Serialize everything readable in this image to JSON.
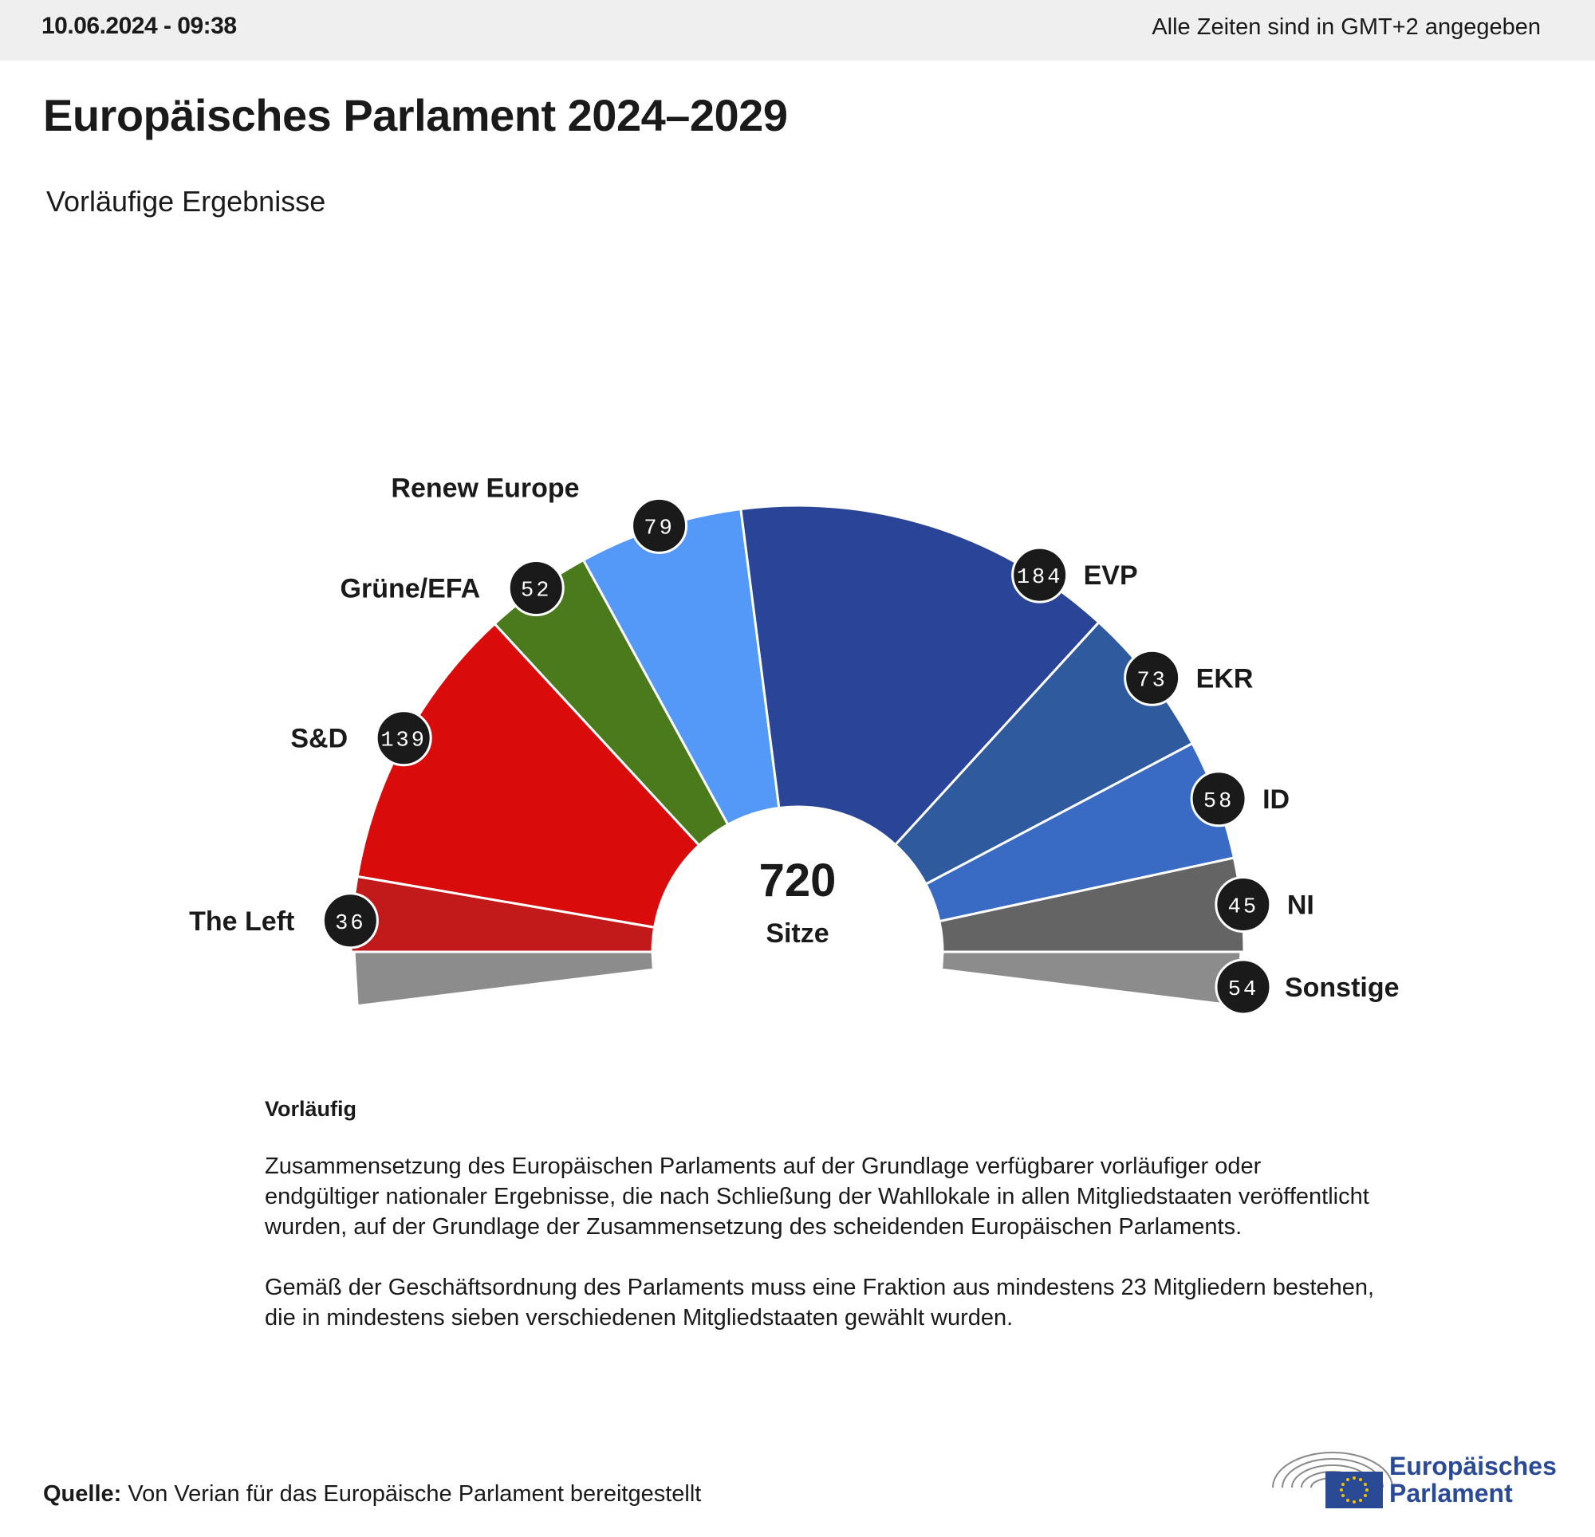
{
  "header": {
    "timestamp": "10.06.2024 - 09:38",
    "timezone_note": "Alle Zeiten sind in GMT+2 angegeben"
  },
  "title": "Europäisches Parlament 2024–2029",
  "subtitle": "Vorläufige Ergebnisse",
  "chart_data": {
    "type": "pie",
    "shape": "hemicycle",
    "total": 720,
    "total_value_label": "720",
    "total_label": "Sitze",
    "series": [
      {
        "name": "The Left",
        "value": 36,
        "color": "#c21a1a"
      },
      {
        "name": "S&D",
        "value": 139,
        "color": "#d90b0b"
      },
      {
        "name": "Grüne/EFA",
        "value": 52,
        "color": "#4a7a1c"
      },
      {
        "name": "Renew Europe",
        "value": 79,
        "color": "#5599f8"
      },
      {
        "name": "EVP",
        "value": 184,
        "color": "#2a4598"
      },
      {
        "name": "EKR",
        "value": 73,
        "color": "#2f5a9e"
      },
      {
        "name": "ID",
        "value": 58,
        "color": "#3a6bc4"
      },
      {
        "name": "NI",
        "value": 45,
        "color": "#646464"
      }
    ],
    "others": {
      "name": "Sonstige",
      "value": 54,
      "color": "#8c8c8c"
    }
  },
  "notes": {
    "heading": "Vorläufig",
    "paragraph1": "Zusammensetzung des Europäischen Parlaments auf der Grundlage verfügbarer vorläufiger oder endgültiger nationaler Ergebnisse, die nach Schließung der Wahllokale in allen Mitgliedstaaten veröffentlicht wurden, auf der Grundlage der Zusammensetzung des scheidenden Europäischen Parlaments.",
    "paragraph2": "Gemäß der Geschäftsordnung des Parlaments muss eine Fraktion aus mindestens 23 Mitgliedern bestehen, die in mindestens sieben verschiedenen Mitgliedstaaten gewählt wurden."
  },
  "footer": {
    "source_label": "Quelle:",
    "source_text": "Von Verian für das Europäische Parlament bereitgestellt",
    "logo_line1": "Europäisches",
    "logo_line2": "Parlament"
  }
}
